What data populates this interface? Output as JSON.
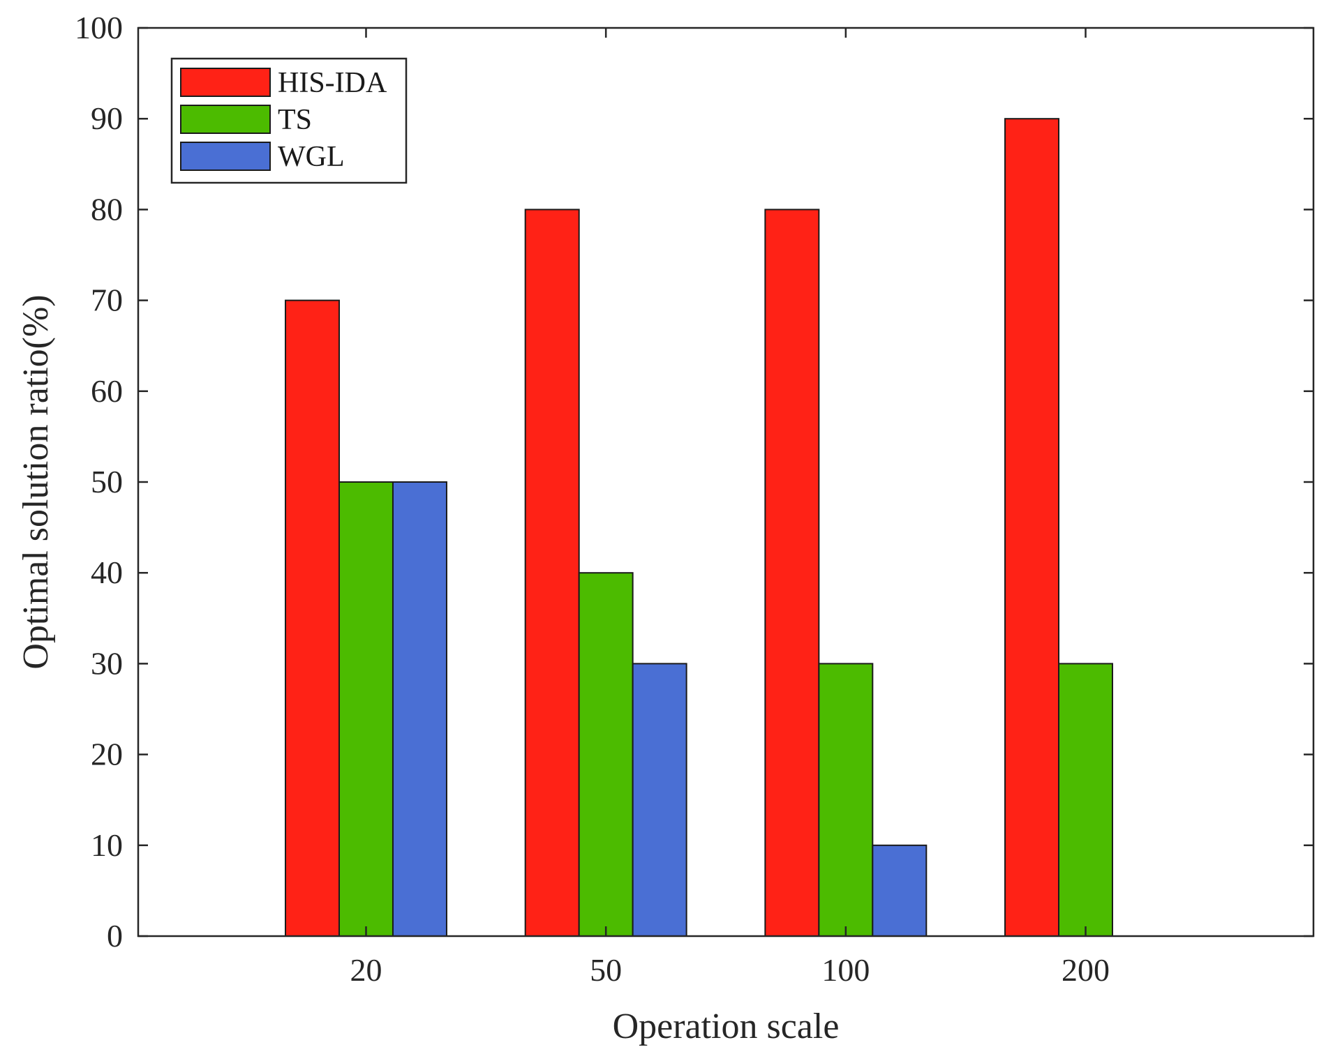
{
  "chart_data": {
    "type": "bar",
    "title": "",
    "xlabel": "Operation scale",
    "ylabel": "Optimal solution ratio(%)",
    "ylim": [
      0,
      100
    ],
    "yticks": [
      "0",
      "10",
      "20",
      "30",
      "40",
      "50",
      "60",
      "70",
      "80",
      "90",
      "100"
    ],
    "categories": [
      "20",
      "50",
      "100",
      "200"
    ],
    "series": [
      {
        "name": "HIS-IDA",
        "color": "#ff2216",
        "values": [
          70,
          80,
          80,
          90
        ]
      },
      {
        "name": "TS",
        "color": "#4cbb00",
        "values": [
          50,
          40,
          30,
          30
        ]
      },
      {
        "name": "WGL",
        "color": "#4a6fd4",
        "values": [
          50,
          30,
          10,
          0
        ]
      }
    ],
    "grid": false,
    "legend_position": "top-left"
  }
}
